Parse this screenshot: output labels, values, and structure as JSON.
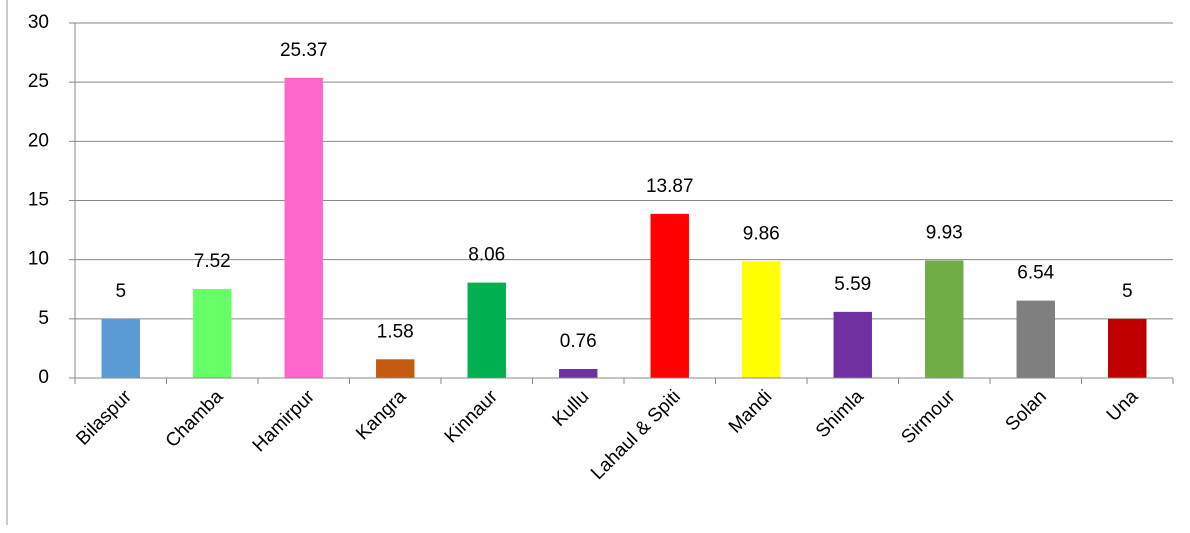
{
  "chart_data": {
    "type": "bar",
    "categories": [
      "Bilaspur",
      "Chamba",
      "Hamirpur",
      "Kangra",
      "Kinnaur",
      "Kullu",
      "Lahaul & Spiti",
      "Mandi",
      "Shimla",
      "Sirmour",
      "Solan",
      "Una"
    ],
    "values": [
      5,
      7.52,
      25.37,
      1.58,
      8.06,
      0.76,
      13.87,
      9.86,
      5.59,
      9.93,
      6.54,
      5
    ],
    "colors": [
      "#5b9bd5",
      "#66ff66",
      "#ff66cc",
      "#c55a11",
      "#00b050",
      "#7030a0",
      "#ff0000",
      "#ffff00",
      "#7030a0",
      "#70ad47",
      "#7f7f7f",
      "#c00000"
    ],
    "ylim": [
      0,
      30
    ],
    "yticks": [
      0,
      5,
      10,
      15,
      20,
      25,
      30
    ],
    "grid": true,
    "data_labels": true
  }
}
